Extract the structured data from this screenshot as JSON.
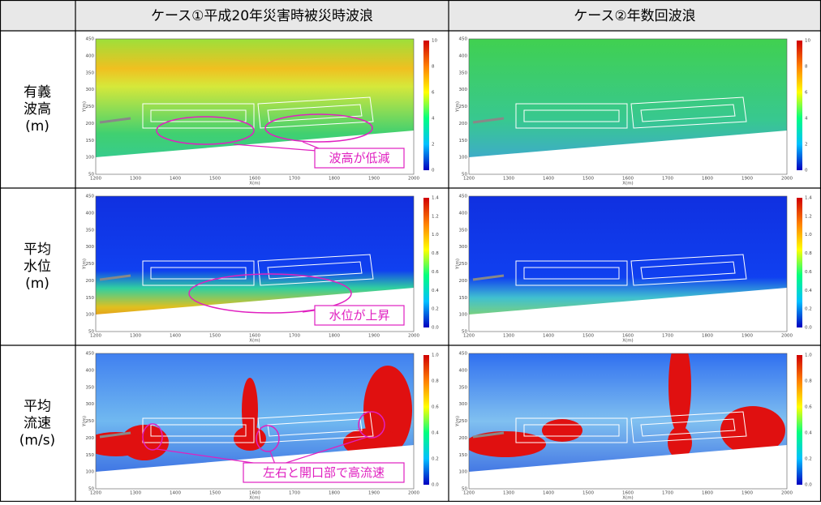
{
  "table": {
    "columns": [
      "ケース①平成20年災害時被災時波浪",
      "ケース②年数回波浪"
    ],
    "rows": [
      {
        "label": [
          "有義",
          "波高",
          "(m)"
        ],
        "colorbar_ticks": [
          "0",
          "2",
          "4",
          "6",
          "8",
          "10"
        ],
        "annotation": "波高が低減"
      },
      {
        "label": [
          "平均",
          "水位",
          "(m)"
        ],
        "colorbar_ticks": [
          "0.0",
          "0.2",
          "0.4",
          "0.6",
          "0.8",
          "1.0",
          "1.2",
          "1.4"
        ],
        "annotation": "水位が上昇"
      },
      {
        "label": [
          "平均",
          "流速",
          "(m/s)"
        ],
        "colorbar_ticks": [
          "0.0",
          "0.2",
          "0.4",
          "0.6",
          "0.8",
          "1.0"
        ],
        "annotation": "左右と開口部で高流速"
      }
    ],
    "plot_axes": {
      "x_label": "X(m)",
      "y_label": "Y(m)",
      "x_ticks": [
        1200,
        1300,
        1400,
        1500,
        1600,
        1700,
        1800,
        1900,
        2000
      ],
      "y_ticks": [
        50,
        100,
        150,
        200,
        250,
        300,
        350,
        400,
        450
      ]
    }
  }
}
